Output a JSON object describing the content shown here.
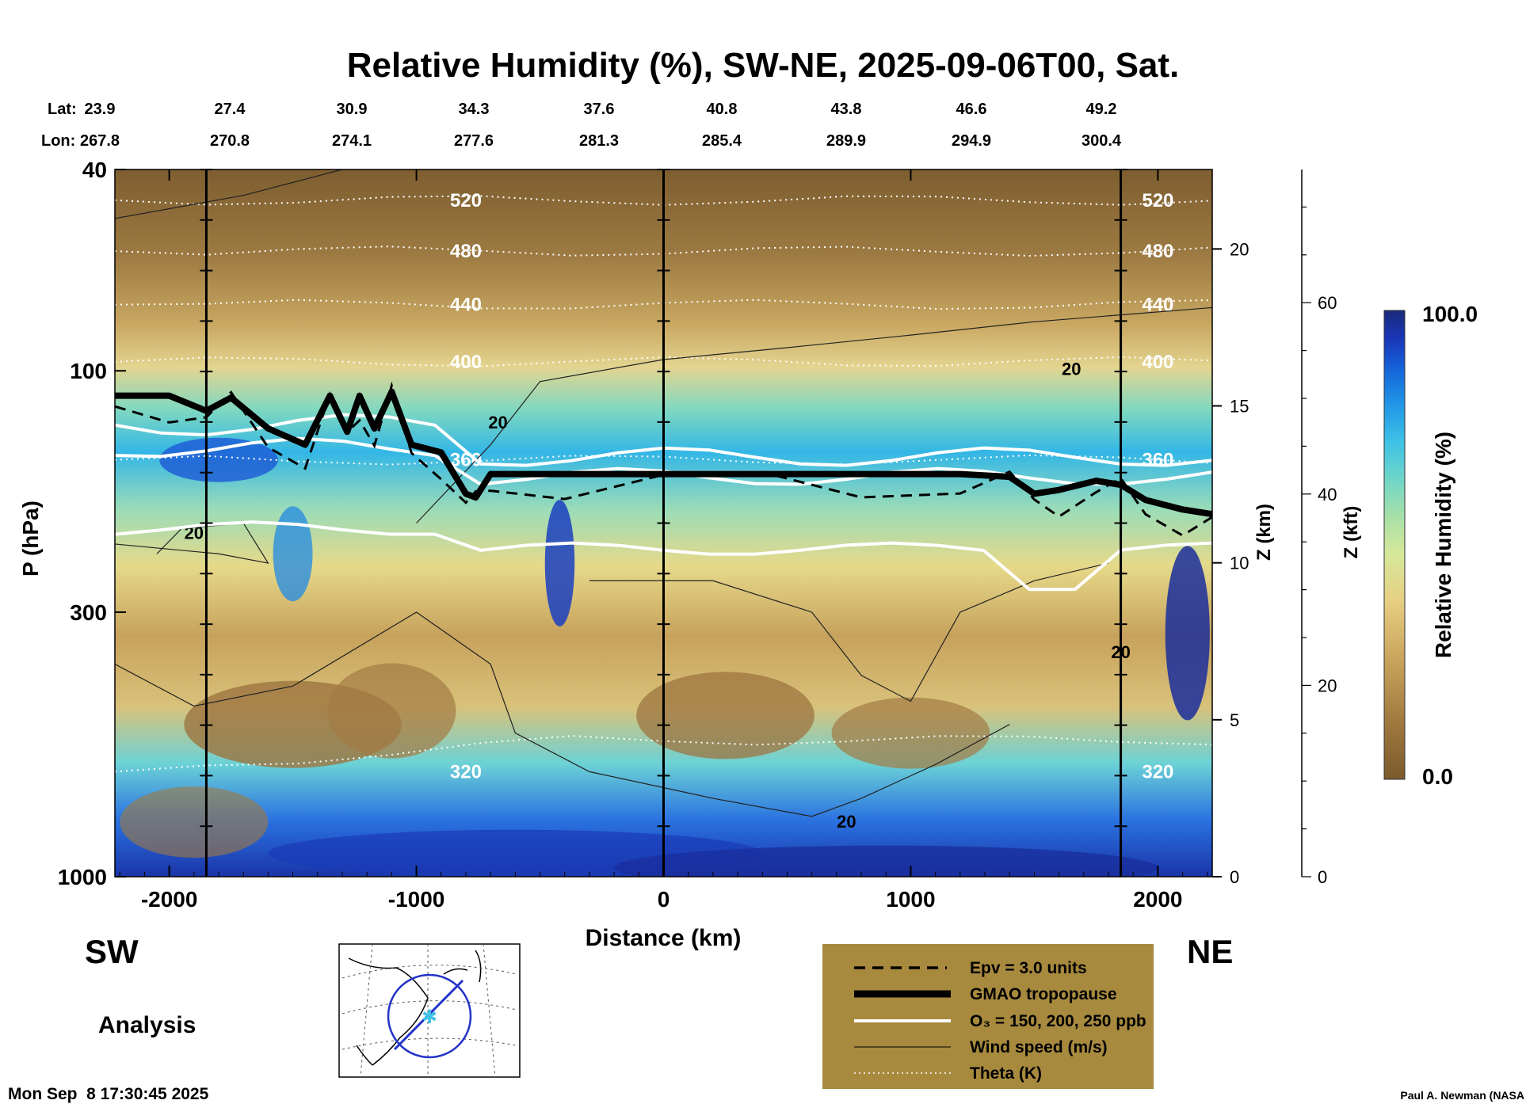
{
  "chart_data": {
    "type": "contour-cross-section",
    "title": "Relative Humidity (%), SW-NE, 2025-09-06T00, Sat.",
    "xlabel": "Distance (km)",
    "ylabel": "P (hPa)",
    "y2label": "Z (km)",
    "y3label": "Z (kft)",
    "colorbar_label": "Relative Humidity (%)",
    "colorbar_range": [
      0.0,
      100.0
    ],
    "colorbar_max_label": "100.0",
    "colorbar_min_label": "0.0",
    "xlim": [
      -2220,
      2220
    ],
    "ylim": [
      1000,
      40
    ],
    "x_ticks": [
      {
        "value": -2000,
        "label": "-2000"
      },
      {
        "value": -1000,
        "label": "-1000"
      },
      {
        "value": 0,
        "label": "0"
      },
      {
        "value": 1000,
        "label": "1000"
      },
      {
        "value": 2000,
        "label": "2000"
      }
    ],
    "p_ticks": [
      {
        "value": 40,
        "label": "40"
      },
      {
        "value": 100,
        "label": "100"
      },
      {
        "value": 300,
        "label": "300"
      },
      {
        "value": 1000,
        "label": "1000"
      }
    ],
    "z_km_ticks": [
      {
        "value": 0,
        "label": "0"
      },
      {
        "value": 5,
        "label": "5"
      },
      {
        "value": 10,
        "label": "10"
      },
      {
        "value": 15,
        "label": "15"
      },
      {
        "value": 20,
        "label": "20"
      }
    ],
    "z_kft_ticks": [
      {
        "value": 0,
        "label": "0"
      },
      {
        "value": 20,
        "label": "20"
      },
      {
        "value": 40,
        "label": "40"
      },
      {
        "value": 60,
        "label": "60"
      }
    ],
    "lat_label": "Lat:",
    "lon_label": "Lon:",
    "lat": [
      "23.9",
      "27.4",
      "30.9",
      "34.3",
      "37.6",
      "40.8",
      "43.8",
      "46.6",
      "49.2"
    ],
    "lon": [
      "267.8",
      "270.8",
      "274.1",
      "277.6",
      "281.3",
      "285.4",
      "289.9",
      "294.9",
      "300.4"
    ],
    "left_end_label": "SW",
    "right_end_label": "NE",
    "analysis_label": "Analysis",
    "theta_contours": [
      {
        "value": 520,
        "label": "520",
        "p": 46
      },
      {
        "value": 480,
        "label": "480",
        "p": 58
      },
      {
        "value": 440,
        "label": "440",
        "p": 74
      },
      {
        "value": 400,
        "label": "400",
        "p": 96
      },
      {
        "value": 360,
        "label": "360",
        "p": 150
      },
      {
        "value": 320,
        "label": "320",
        "p": 620
      }
    ],
    "wind_speed_labels": [
      "20",
      "20",
      "20",
      "20",
      "20"
    ],
    "tropopause": {
      "x": [
        -2220,
        -2000,
        -1850,
        -1750,
        -1600,
        -1450,
        -1350,
        -1280,
        -1230,
        -1170,
        -1100,
        -1020,
        -900,
        -800,
        -760,
        -700,
        -400,
        0,
        400,
        800,
        1200,
        1400,
        1500,
        1600,
        1750,
        1850,
        1950,
        2100,
        2220
      ],
      "p": [
        112,
        112,
        120,
        113,
        130,
        140,
        112,
        132,
        112,
        130,
        110,
        140,
        145,
        175,
        178,
        160,
        160,
        160,
        160,
        160,
        160,
        162,
        175,
        172,
        165,
        168,
        180,
        188,
        192
      ]
    },
    "vertical_lines_km": [
      -1850,
      0,
      1850
    ],
    "legend": {
      "items": [
        {
          "label": "Epv = 3.0 units",
          "style": "dashed-black"
        },
        {
          "label": "GMAO tropopause",
          "style": "thick-black"
        },
        {
          "label": "O₃ = 150, 200, 250 ppb",
          "style": "white"
        },
        {
          "label": "Wind speed (m/s)",
          "style": "thin-black"
        },
        {
          "label": "Theta (K)",
          "style": "dotted-white"
        }
      ],
      "background": "#A88A3E"
    },
    "colors": {
      "dry": "#7A5A2C",
      "moist": "#1A2E8C",
      "mid": "#E8D98A"
    }
  },
  "footer": {
    "timestamp": "Mon Sep  8 17:30:45 2025",
    "credit": "Paul A. Newman (NASA"
  }
}
